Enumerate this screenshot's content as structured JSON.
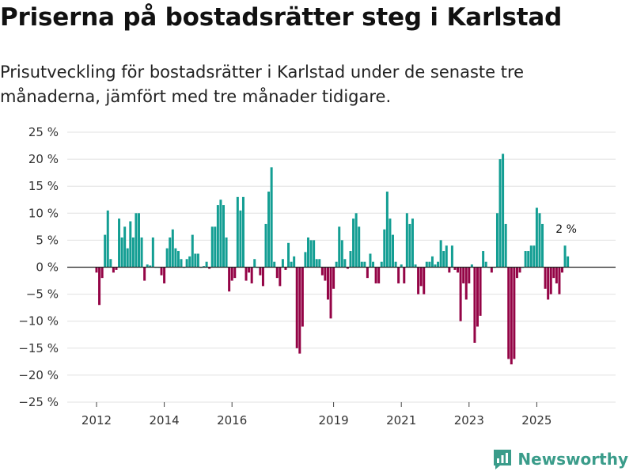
{
  "title": "Priserna på bostadsrätter steg i Karlstad",
  "subtitle": "Prisutveckling för bostadsrätter i Karlstad under de senaste tre månaderna, jämfört med tre månader tidigare.",
  "brand": {
    "name": "Newsworthy",
    "icon": "newsworthy-logo-icon",
    "color": "#3a9c8a"
  },
  "chart_data": {
    "type": "bar",
    "title": "Priserna på bostadsrätter steg i Karlstad",
    "xlabel": "",
    "ylabel": "",
    "ylim": [
      -25,
      25
    ],
    "yticks": [
      25,
      20,
      15,
      10,
      5,
      0,
      -5,
      -10,
      -15,
      -20,
      -25
    ],
    "ytick_labels": [
      "25 %",
      "20 %",
      "15 %",
      "10 %",
      "5 %",
      "0 %",
      "−5 %",
      "−10 %",
      "−15 %",
      "−20 %",
      "−25 %"
    ],
    "xticks": [
      2012,
      2014,
      2016,
      2019,
      2021,
      2023,
      2025
    ],
    "x_start": "2012-01",
    "x_end": "2026-06",
    "grid": true,
    "colors": {
      "positive": "#139e93",
      "negative": "#940446",
      "zero_line": "#222222",
      "grid": "#e0e0e0"
    },
    "series": [
      {
        "name": "Prisutveckling",
        "start": "2012-01",
        "frequency": "monthly",
        "values": [
          -1,
          -7,
          -2,
          6,
          10.5,
          1.5,
          -1,
          -0.5,
          9,
          5.5,
          7.5,
          3.5,
          8.5,
          5.5,
          10,
          10,
          5.5,
          -2.5,
          0.5,
          0.3,
          5.5,
          0,
          0,
          -1.5,
          -3,
          3.5,
          5.5,
          7,
          3.5,
          3,
          1.5,
          0,
          1.5,
          2,
          6,
          2.5,
          2.5,
          0,
          0.2,
          1,
          -0.3,
          7.5,
          7.5,
          11.5,
          12.5,
          11.5,
          5.5,
          -4.5,
          -2.5,
          -2,
          13,
          10.5,
          13,
          -2.5,
          -1,
          -3,
          1.5,
          0,
          -1.5,
          -3.5,
          8,
          14,
          18.5,
          1,
          -2,
          -3.5,
          1.5,
          -0.5,
          4.5,
          1,
          2,
          -15,
          -16,
          -11,
          2.8,
          5.5,
          5,
          5,
          1.5,
          1.5,
          -1.5,
          -2.5,
          -6,
          -9.5,
          -4,
          1,
          7.5,
          5,
          1.5,
          -0.3,
          3,
          9,
          10,
          7.5,
          1,
          1,
          -2,
          2.5,
          1,
          -3,
          -3,
          1,
          7,
          14,
          9,
          6,
          1,
          -3,
          0.5,
          -3,
          10,
          8,
          9,
          0.5,
          -5,
          -3.5,
          -5,
          1,
          1,
          2,
          0.5,
          1,
          5,
          3,
          4,
          -1,
          4,
          -0.5,
          -1,
          -10,
          -3,
          -6,
          -3,
          0.5,
          -14,
          -11,
          -9,
          3,
          1,
          0,
          -1,
          0,
          10,
          20,
          21,
          8,
          -17,
          -18,
          -17,
          -2,
          -1,
          0,
          3,
          3,
          4,
          4,
          11,
          10,
          8,
          -4,
          -6,
          -5,
          -2,
          -3,
          -5,
          -1,
          4,
          2
        ]
      }
    ],
    "annotations": [
      {
        "label": "2 %",
        "target": "last"
      }
    ]
  }
}
